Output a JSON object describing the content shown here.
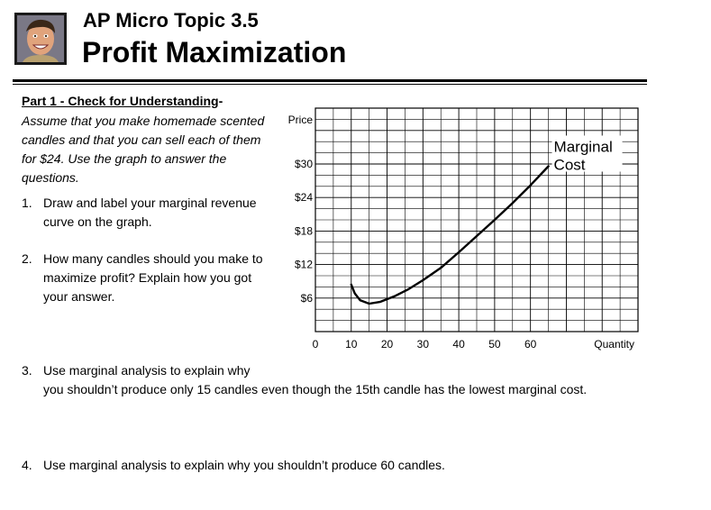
{
  "header": {
    "title_line1": "AP Micro Topic 3.5",
    "title_line2": "Profit Maximization"
  },
  "part1": {
    "heading": "Part 1 - Check for Understanding",
    "heading_suffix": "-",
    "intro": "Assume that you make homemade scented candles and that you can sell each of them for $24. Use the graph to answer the questions."
  },
  "questions": [
    {
      "num": "1.",
      "text": "Draw and label your marginal revenue curve on the graph."
    },
    {
      "num": "2.",
      "text": "How many candles should you make to maximize profit? Explain how you got your answer."
    },
    {
      "num": "3.",
      "text": "Use marginal analysis to explain why",
      "text2": "you shouldn’t produce only 15 candles even though the 15th candle has the lowest marginal cost."
    },
    {
      "num": "4.",
      "text": "Use marginal analysis to explain why you shouldn’t produce 60 candles."
    }
  ],
  "chart_data": {
    "type": "line",
    "xlabel": "Quantity",
    "ylabel": "Price",
    "grid": true,
    "xlim": [
      0,
      90
    ],
    "ylim": [
      0,
      40
    ],
    "x_ticks": [
      "0",
      "10",
      "20",
      "30",
      "40",
      "50",
      "60"
    ],
    "y_ticks": [
      "$6",
      "$12",
      "$18",
      "$24",
      "$30"
    ],
    "series": [
      {
        "name": "Marginal Cost",
        "color": "#000000",
        "points": [
          [
            10,
            8.4
          ],
          [
            11,
            6.8
          ],
          [
            12.5,
            5.6
          ],
          [
            15,
            5.0
          ],
          [
            18,
            5.3
          ],
          [
            22,
            6.3
          ],
          [
            26,
            7.6
          ],
          [
            30,
            9.2
          ],
          [
            35,
            11.4
          ],
          [
            40,
            14.2
          ],
          [
            45,
            17.1
          ],
          [
            50,
            20.0
          ],
          [
            55,
            23.0
          ],
          [
            60,
            26.2
          ],
          [
            65,
            29.6
          ]
        ]
      }
    ]
  }
}
